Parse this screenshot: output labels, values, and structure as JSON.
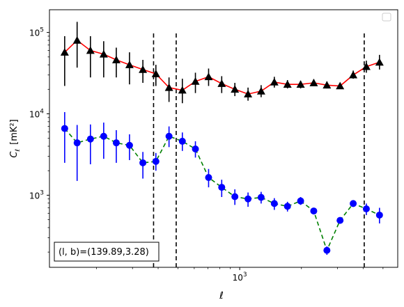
{
  "chart_data": {
    "type": "scatter",
    "title": "",
    "xlabel": "ℓ",
    "ylabel_main": "C",
    "ylabel_sub": "ℓ",
    "ylabel_unit": "[mK²]",
    "xscale": "log",
    "yscale": "log",
    "xlim": [
      118,
      5900
    ],
    "ylim": [
      130,
      190000
    ],
    "x_ticks": [
      {
        "value": 1000,
        "base": "10",
        "exp": "3"
      }
    ],
    "y_ticks": [
      {
        "value": 1000,
        "base": "10",
        "exp": "3"
      },
      {
        "value": 10000,
        "base": "10",
        "exp": "4"
      },
      {
        "value": 100000,
        "base": "10",
        "exp": "5"
      }
    ],
    "vlines": [
      380,
      490,
      4050
    ],
    "annotation": "(l, b)=(139.89,3.28)",
    "legend": {
      "placement": "top-right",
      "entries": []
    },
    "grid": false,
    "series": [
      {
        "color": "#ff0000",
        "linestyle": "solid",
        "marker": "triangle",
        "marker_color": "#000000",
        "errorbar_color": "#000000",
        "points": [
          {
            "x": 140,
            "y": 57000,
            "lo": 22000,
            "hi": 90000
          },
          {
            "x": 161,
            "y": 80000,
            "lo": 37000,
            "hi": 135000
          },
          {
            "x": 187,
            "y": 60000,
            "lo": 28000,
            "hi": 90000
          },
          {
            "x": 217,
            "y": 54000,
            "lo": 28000,
            "hi": 78000
          },
          {
            "x": 250,
            "y": 46000,
            "lo": 28000,
            "hi": 65000
          },
          {
            "x": 290,
            "y": 40000,
            "lo": 23000,
            "hi": 57000
          },
          {
            "x": 337,
            "y": 35000,
            "lo": 24000,
            "hi": 46000
          },
          {
            "x": 390,
            "y": 31000,
            "lo": 22000,
            "hi": 40000
          },
          {
            "x": 452,
            "y": 21000,
            "lo": 14000,
            "hi": 28000
          },
          {
            "x": 525,
            "y": 19500,
            "lo": 13500,
            "hi": 27000
          },
          {
            "x": 608,
            "y": 25000,
            "lo": 18000,
            "hi": 32000
          },
          {
            "x": 705,
            "y": 28500,
            "lo": 22000,
            "hi": 36000
          },
          {
            "x": 817,
            "y": 23500,
            "lo": 18000,
            "hi": 29000
          },
          {
            "x": 947,
            "y": 20000,
            "lo": 16500,
            "hi": 24000
          },
          {
            "x": 1098,
            "y": 17500,
            "lo": 14500,
            "hi": 21000
          },
          {
            "x": 1272,
            "y": 19000,
            "lo": 16000,
            "hi": 22500
          },
          {
            "x": 1475,
            "y": 24500,
            "lo": 21000,
            "hi": 28500
          },
          {
            "x": 1710,
            "y": 23000,
            "lo": 20500,
            "hi": 26000
          },
          {
            "x": 1982,
            "y": 23000,
            "lo": 20500,
            "hi": 25500
          },
          {
            "x": 2297,
            "y": 24000,
            "lo": 22000,
            "hi": 26500
          },
          {
            "x": 2663,
            "y": 22500,
            "lo": 20500,
            "hi": 25000
          },
          {
            "x": 3087,
            "y": 22000,
            "lo": 20500,
            "hi": 23500
          },
          {
            "x": 3578,
            "y": 30000,
            "lo": 27000,
            "hi": 34000
          },
          {
            "x": 4147,
            "y": 38000,
            "lo": 32000,
            "hi": 45000
          },
          {
            "x": 4807,
            "y": 43000,
            "lo": 35000,
            "hi": 53000
          }
        ]
      },
      {
        "color": "#008000",
        "linestyle": "dashed",
        "marker": "circle",
        "marker_color": "#0000ff",
        "errorbar_color": "#0000ff",
        "points": [
          {
            "x": 140,
            "y": 6600,
            "lo": 2500,
            "hi": 10500
          },
          {
            "x": 161,
            "y": 4400,
            "lo": 1500,
            "hi": 7300
          },
          {
            "x": 187,
            "y": 4900,
            "lo": 2400,
            "hi": 7400
          },
          {
            "x": 217,
            "y": 5300,
            "lo": 2800,
            "hi": 7800
          },
          {
            "x": 250,
            "y": 4400,
            "lo": 2500,
            "hi": 6300
          },
          {
            "x": 290,
            "y": 4100,
            "lo": 2700,
            "hi": 5600
          },
          {
            "x": 337,
            "y": 2500,
            "lo": 1600,
            "hi": 3400
          },
          {
            "x": 390,
            "y": 2600,
            "lo": 2000,
            "hi": 3300
          },
          {
            "x": 452,
            "y": 5300,
            "lo": 3900,
            "hi": 7000
          },
          {
            "x": 525,
            "y": 4600,
            "lo": 3500,
            "hi": 5900
          },
          {
            "x": 608,
            "y": 3700,
            "lo": 2900,
            "hi": 4600
          },
          {
            "x": 705,
            "y": 1650,
            "lo": 1250,
            "hi": 2100
          },
          {
            "x": 817,
            "y": 1250,
            "lo": 950,
            "hi": 1550
          },
          {
            "x": 947,
            "y": 960,
            "lo": 760,
            "hi": 1180
          },
          {
            "x": 1098,
            "y": 900,
            "lo": 720,
            "hi": 1080
          },
          {
            "x": 1272,
            "y": 940,
            "lo": 790,
            "hi": 1100
          },
          {
            "x": 1475,
            "y": 790,
            "lo": 660,
            "hi": 920
          },
          {
            "x": 1710,
            "y": 730,
            "lo": 630,
            "hi": 830
          },
          {
            "x": 1982,
            "y": 850,
            "lo": 760,
            "hi": 950
          },
          {
            "x": 2297,
            "y": 640,
            "lo": 580,
            "hi": 700
          },
          {
            "x": 2663,
            "y": 210,
            "lo": 185,
            "hi": 235
          },
          {
            "x": 3087,
            "y": 490,
            "lo": 450,
            "hi": 530
          },
          {
            "x": 3578,
            "y": 790,
            "lo": 720,
            "hi": 860
          },
          {
            "x": 4147,
            "y": 680,
            "lo": 570,
            "hi": 790
          },
          {
            "x": 4807,
            "y": 570,
            "lo": 450,
            "hi": 700
          }
        ]
      }
    ]
  }
}
